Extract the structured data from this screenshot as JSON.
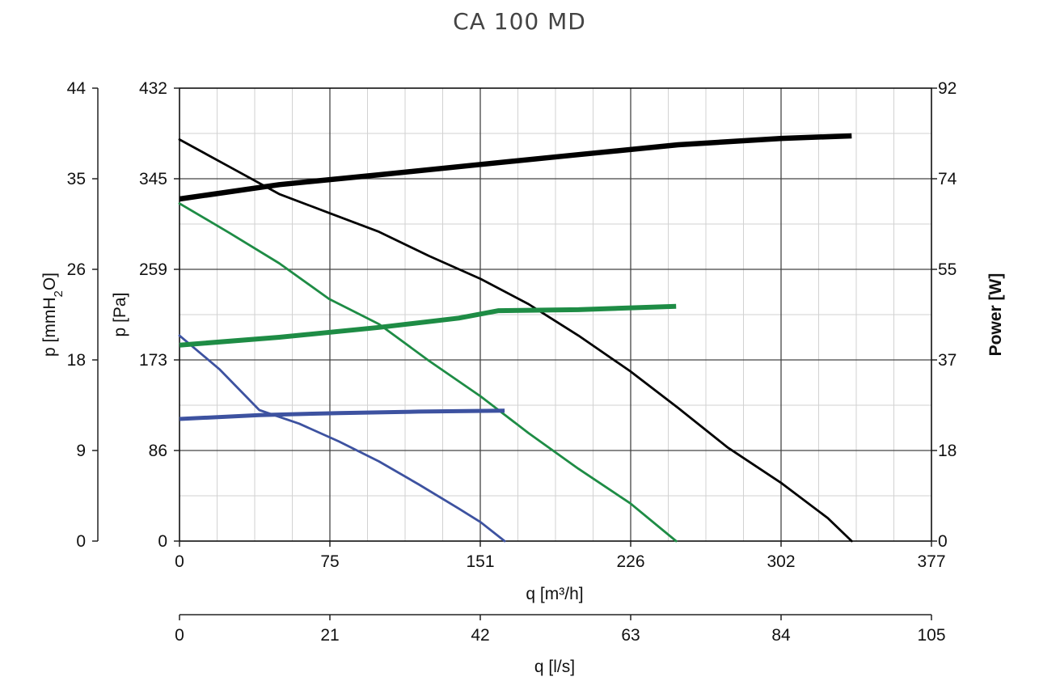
{
  "chart_data": {
    "type": "line",
    "title": "CA 100 MD",
    "xlabel": "q [m³/h]",
    "x2label": "q [l/s]",
    "ylabel": "p [Pa]",
    "y2label": "p [mmH2O]",
    "y3label": "Power [W]",
    "grid": true,
    "xlim": [
      0,
      377
    ],
    "ylim": [
      0,
      432
    ],
    "x_ticks": [
      "0",
      "75",
      "151",
      "226",
      "302",
      "377"
    ],
    "x2_ticks": [
      "0",
      "21",
      "42",
      "63",
      "84",
      "105"
    ],
    "y_ticks": [
      "0",
      "86",
      "173",
      "259",
      "345",
      "432"
    ],
    "y2_ticks": [
      "0",
      "9",
      "18",
      "26",
      "35",
      "44"
    ],
    "y3_ticks": [
      "0",
      "18",
      "37",
      "55",
      "74",
      "92"
    ],
    "pressure_series": [
      {
        "color": "#000000",
        "x": [
          0,
          25,
          50,
          75,
          100,
          125,
          151,
          175,
          200,
          226,
          250,
          275,
          302,
          325,
          337
        ],
        "y": [
          383,
          357,
          331,
          313,
          295,
          272,
          250,
          226,
          196,
          162,
          127,
          89,
          55,
          22,
          0
        ]
      },
      {
        "color": "#1e8c45",
        "x": [
          0,
          25,
          50,
          75,
          100,
          125,
          151,
          175,
          200,
          226,
          249
        ],
        "y": [
          322,
          294,
          265,
          231,
          207,
          172,
          138,
          103,
          69,
          36,
          0
        ]
      },
      {
        "color": "#3d52a0",
        "x": [
          0,
          20,
          40,
          60,
          80,
          100,
          120,
          140,
          151,
          163
        ],
        "y": [
          196,
          164,
          125,
          112,
          95,
          76,
          54,
          31,
          18,
          0
        ]
      }
    ],
    "power_series": [
      {
        "color": "#000000",
        "x": [
          0,
          50,
          100,
          151,
          200,
          250,
          302,
          337
        ],
        "y": [
          69.5,
          72.4,
          74.4,
          76.5,
          78.5,
          80.5,
          81.8,
          82.3
        ]
      },
      {
        "color": "#1e8c45",
        "x": [
          0,
          50,
          100,
          140,
          160,
          200,
          249
        ],
        "y": [
          39.8,
          41.4,
          43.4,
          45.3,
          46.8,
          47.0,
          47.7
        ]
      },
      {
        "color": "#3d52a0",
        "x": [
          0,
          40,
          80,
          120,
          163
        ],
        "y": [
          24.8,
          25.6,
          26.0,
          26.3,
          26.5
        ]
      }
    ],
    "pressure_line_width": [
      2.8,
      2.8,
      2.8
    ],
    "power_line_width": [
      6.5,
      6,
      5
    ]
  }
}
